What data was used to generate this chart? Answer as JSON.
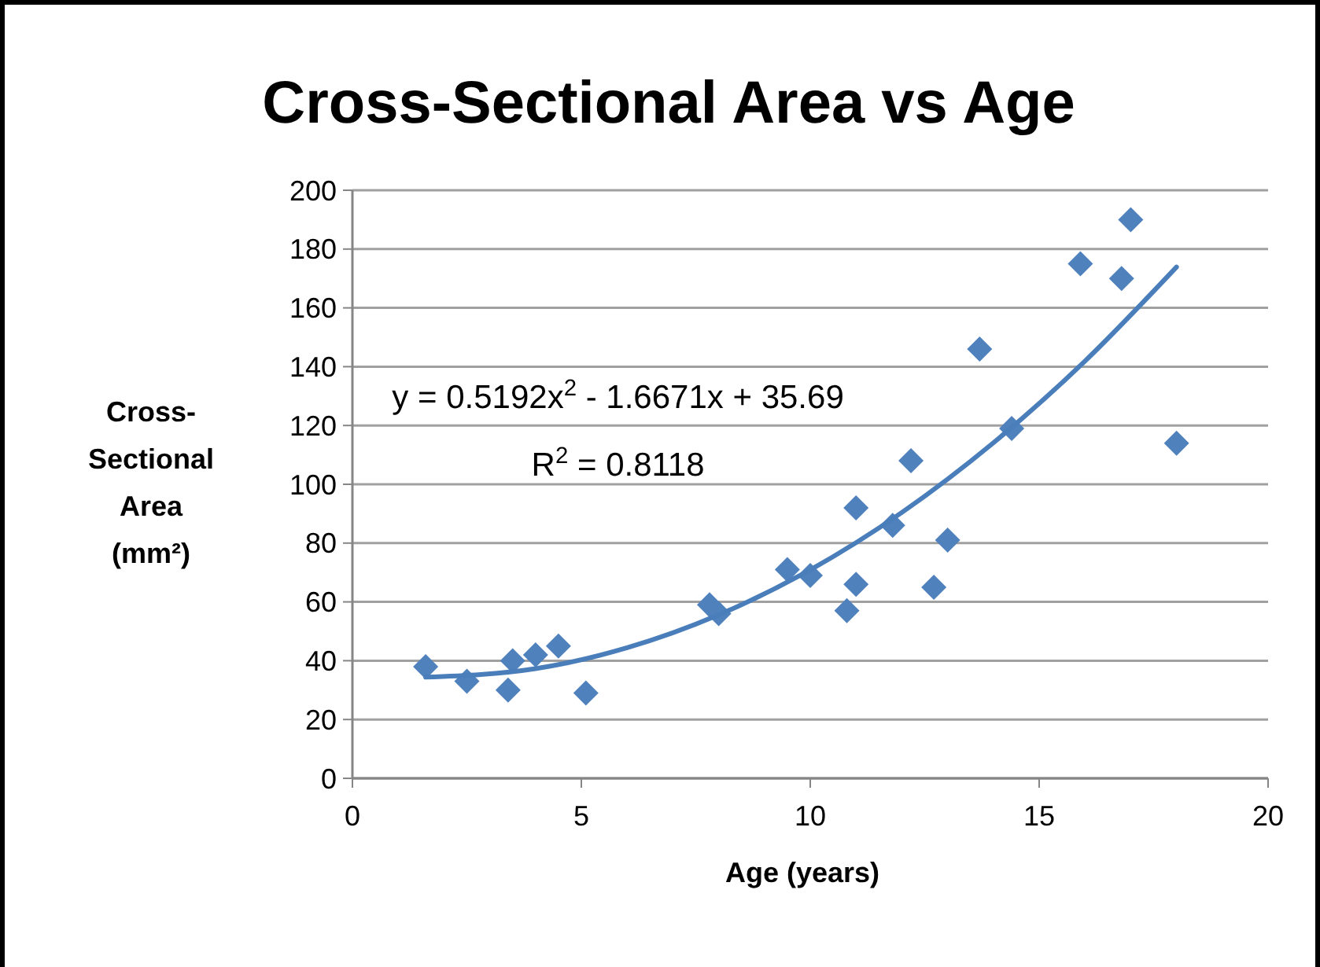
{
  "chart_data": {
    "type": "scatter",
    "title": "Cross-Sectional Area vs Age",
    "xlabel": "Age (years)",
    "ylabel": "Cross-Sectional Area (mm²)",
    "xlim": [
      0,
      20
    ],
    "xticks": [
      0,
      5,
      10,
      15,
      20
    ],
    "ylim": [
      0,
      200
    ],
    "yticks": [
      0,
      20,
      40,
      60,
      80,
      100,
      120,
      140,
      160,
      180,
      200
    ],
    "grid": "y",
    "marker": "diamond",
    "annotations": [
      "y = 0.5192x$^{2}$ - 1.6671x + 35.69",
      "R$^{2}$ = 0.8118"
    ],
    "series": [
      {
        "color": "#4f81bd",
        "x": [
          1.6,
          2.5,
          3.4,
          3.5,
          4.0,
          4.5,
          5.1,
          7.8,
          8.0,
          9.5,
          10.0,
          10.8,
          11.0,
          11.0,
          11.8,
          12.2,
          12.7,
          13.0,
          13.7,
          14.4,
          15.9,
          16.8,
          17.0,
          18.0
        ],
        "values": [
          38,
          33,
          30,
          40,
          42,
          45,
          29,
          59,
          56,
          71,
          69,
          57,
          66,
          92,
          86,
          108,
          65,
          81,
          146,
          119,
          175,
          170,
          190,
          114
        ]
      },
      {
        "type": "line",
        "color": "#4a7ebb",
        "marker": "none",
        "x": [
          1.6,
          4,
          6,
          8,
          10,
          12,
          14,
          16,
          18
        ],
        "values": [
          34.4,
          37.3,
          44.4,
          55.6,
          70.9,
          90.4,
          114.1,
          141.9,
          173.9
        ]
      }
    ]
  }
}
